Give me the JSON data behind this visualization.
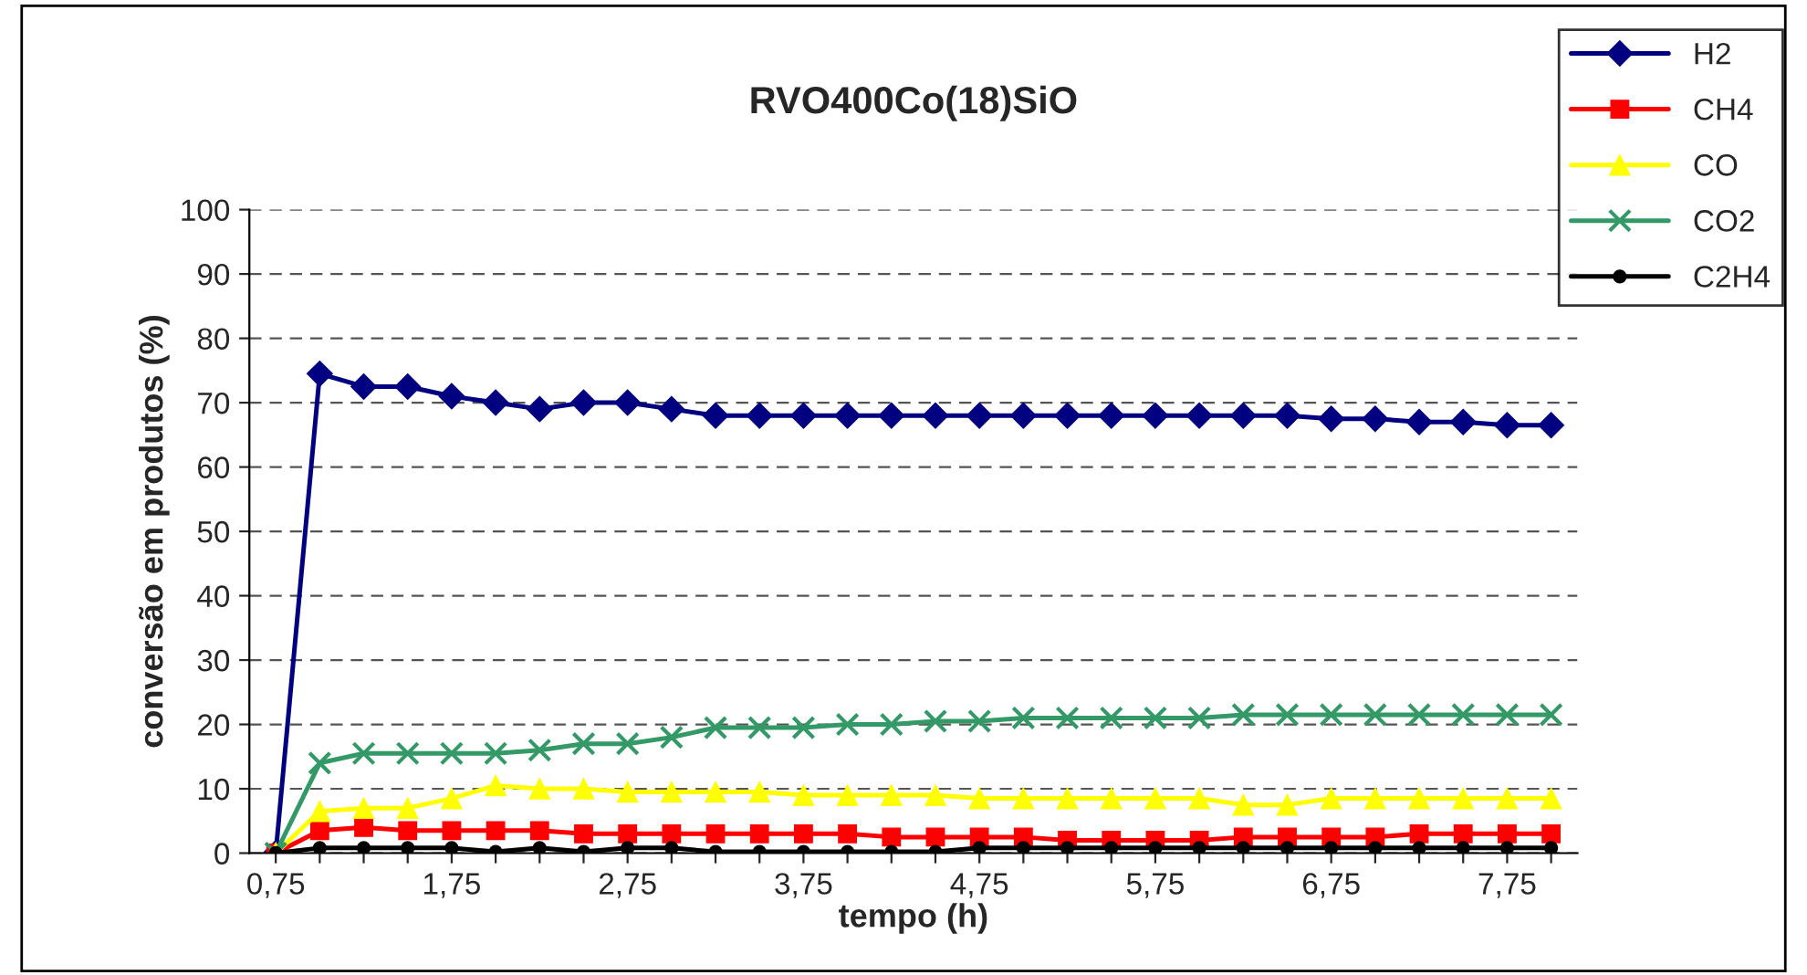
{
  "chart_data": {
    "type": "line",
    "title": "RVO400Co(18)SiO",
    "xlabel": "tempo (h)",
    "ylabel": "conversão em produtos (%)",
    "x": [
      0.75,
      1.0,
      1.25,
      1.5,
      1.75,
      2.0,
      2.25,
      2.5,
      2.75,
      3.0,
      3.25,
      3.5,
      3.75,
      4.0,
      4.25,
      4.5,
      4.75,
      5.0,
      5.25,
      5.5,
      5.75,
      6.0,
      6.25,
      6.5,
      6.75,
      7.0,
      7.25,
      7.5,
      7.75,
      8.0
    ],
    "series": [
      {
        "name": "H2",
        "color": "#000080",
        "marker": "diamond",
        "values": [
          0,
          74.5,
          72.5,
          72.5,
          71,
          70,
          69,
          70,
          70,
          69,
          68,
          68,
          68,
          68,
          68,
          68,
          68,
          68,
          68,
          68,
          68,
          68,
          68,
          68,
          67.5,
          67.5,
          67,
          67,
          66.5,
          66.5
        ]
      },
      {
        "name": "CH4",
        "color": "#ff0000",
        "marker": "square",
        "values": [
          0,
          3.5,
          4,
          3.5,
          3.5,
          3.5,
          3.5,
          3,
          3,
          3,
          3,
          3,
          3,
          3,
          2.5,
          2.5,
          2.5,
          2.5,
          2,
          2,
          2,
          2,
          2.5,
          2.5,
          2.5,
          2.5,
          3,
          3,
          3,
          3
        ]
      },
      {
        "name": "CO",
        "color": "#ffff00",
        "marker": "triangle",
        "values": [
          0,
          6.5,
          7,
          7,
          8.5,
          10.5,
          10,
          10,
          9.5,
          9.5,
          9.5,
          9.5,
          9,
          9,
          9,
          9,
          8.5,
          8.5,
          8.5,
          8.5,
          8.5,
          8.5,
          7.5,
          7.5,
          8.5,
          8.5,
          8.5,
          8.5,
          8.5,
          8.5
        ]
      },
      {
        "name": "CO2",
        "color": "#339966",
        "marker": "cross",
        "values": [
          0,
          14,
          15.5,
          15.5,
          15.5,
          15.5,
          16,
          17,
          17,
          18,
          19.5,
          19.5,
          19.5,
          20,
          20,
          20.5,
          20.5,
          21,
          21,
          21,
          21,
          21,
          21.5,
          21.5,
          21.5,
          21.5,
          21.5,
          21.5,
          21.5,
          21.5
        ]
      },
      {
        "name": "C2H4",
        "color": "#000000",
        "marker": "circle",
        "values": [
          0,
          0.8,
          0.8,
          0.8,
          0.8,
          0.2,
          0.8,
          0.2,
          0.8,
          0.8,
          0.2,
          0.2,
          0.2,
          0.2,
          0.2,
          0.2,
          0.8,
          0.8,
          0.8,
          0.8,
          0.8,
          0.8,
          0.8,
          0.8,
          0.8,
          0.8,
          0.8,
          0.8,
          0.8,
          0.8
        ]
      }
    ],
    "xlim": [
      0.6,
      8.15
    ],
    "xticks": [
      {
        "value": 0.75,
        "label": "0,75"
      },
      {
        "value": 1.0,
        "label": null
      },
      {
        "value": 1.25,
        "label": null
      },
      {
        "value": 1.5,
        "label": null
      },
      {
        "value": 1.75,
        "label": "1,75"
      },
      {
        "value": 2.0,
        "label": null
      },
      {
        "value": 2.25,
        "label": null
      },
      {
        "value": 2.5,
        "label": null
      },
      {
        "value": 2.75,
        "label": "2,75"
      },
      {
        "value": 3.0,
        "label": null
      },
      {
        "value": 3.25,
        "label": null
      },
      {
        "value": 3.5,
        "label": null
      },
      {
        "value": 3.75,
        "label": "3,75"
      },
      {
        "value": 4.0,
        "label": null
      },
      {
        "value": 4.25,
        "label": null
      },
      {
        "value": 4.5,
        "label": null
      },
      {
        "value": 4.75,
        "label": "4,75"
      },
      {
        "value": 5.0,
        "label": null
      },
      {
        "value": 5.25,
        "label": null
      },
      {
        "value": 5.5,
        "label": null
      },
      {
        "value": 5.75,
        "label": "5,75"
      },
      {
        "value": 6.0,
        "label": null
      },
      {
        "value": 6.25,
        "label": null
      },
      {
        "value": 6.5,
        "label": null
      },
      {
        "value": 6.75,
        "label": "6,75"
      },
      {
        "value": 7.0,
        "label": null
      },
      {
        "value": 7.25,
        "label": null
      },
      {
        "value": 7.5,
        "label": null
      },
      {
        "value": 7.75,
        "label": "7,75"
      },
      {
        "value": 8.0,
        "label": null
      }
    ],
    "ylim": [
      0,
      100
    ],
    "yticks": [
      0,
      10,
      20,
      30,
      40,
      50,
      60,
      70,
      80,
      90,
      100
    ],
    "grid": "y",
    "legend": "top right",
    "line_style": "solid"
  }
}
